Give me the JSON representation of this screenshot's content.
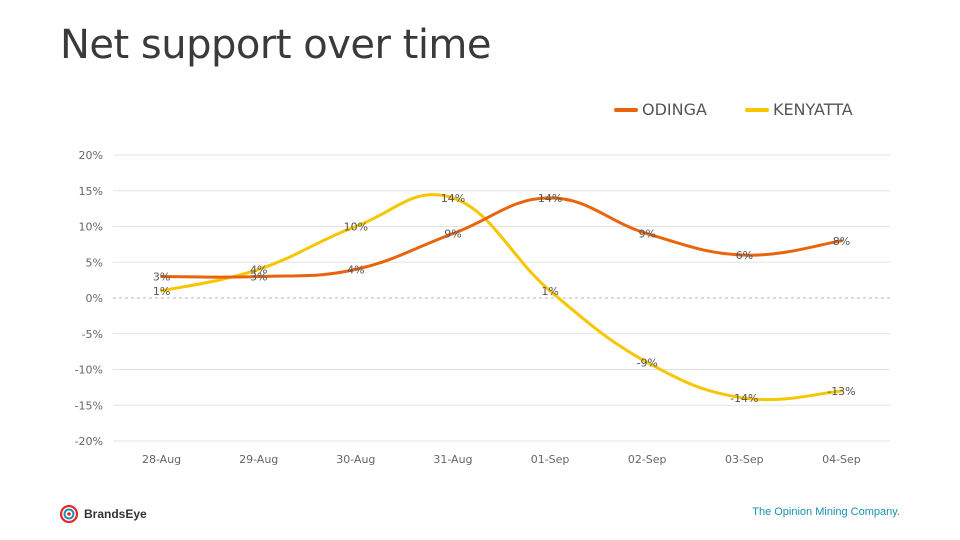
{
  "title": "Net support over time",
  "footer": {
    "brand": "BrandsEye",
    "tagline": "The Opinion Mining Company."
  },
  "chart_data": {
    "type": "line",
    "title": "Net support over time",
    "categories": [
      "28-Aug",
      "29-Aug",
      "30-Aug",
      "31-Aug",
      "01-Sep",
      "02-Sep",
      "03-Sep",
      "04-Sep"
    ],
    "series": [
      {
        "name": "ODINGA",
        "color": "#e8650e",
        "values": [
          3,
          3,
          4,
          9,
          14,
          9,
          6,
          8
        ]
      },
      {
        "name": "KENYATTA",
        "color": "#f7c600",
        "values": [
          1,
          4,
          10,
          14,
          1,
          -9,
          -14,
          -13
        ]
      }
    ],
    "y_ticks": [
      20,
      15,
      10,
      5,
      0,
      -5,
      -10,
      -15,
      -20
    ],
    "y_tick_labels": [
      "20%",
      "15%",
      "10%",
      "5%",
      "0%",
      "-5%",
      "-10%",
      "-15%",
      "-20%"
    ],
    "data_labels": {
      "ODINGA": [
        "3%",
        "3%",
        "4%",
        "9%",
        "14%",
        "9%",
        "6%",
        "8%"
      ],
      "KENYATTA": [
        "1%",
        "4%",
        "10%",
        "14%",
        "1%",
        "-9%",
        "-14%",
        "-13%"
      ]
    },
    "ylim": [
      -20,
      20
    ],
    "zero_line": "dashed",
    "grid": true,
    "legend": "top-right"
  }
}
